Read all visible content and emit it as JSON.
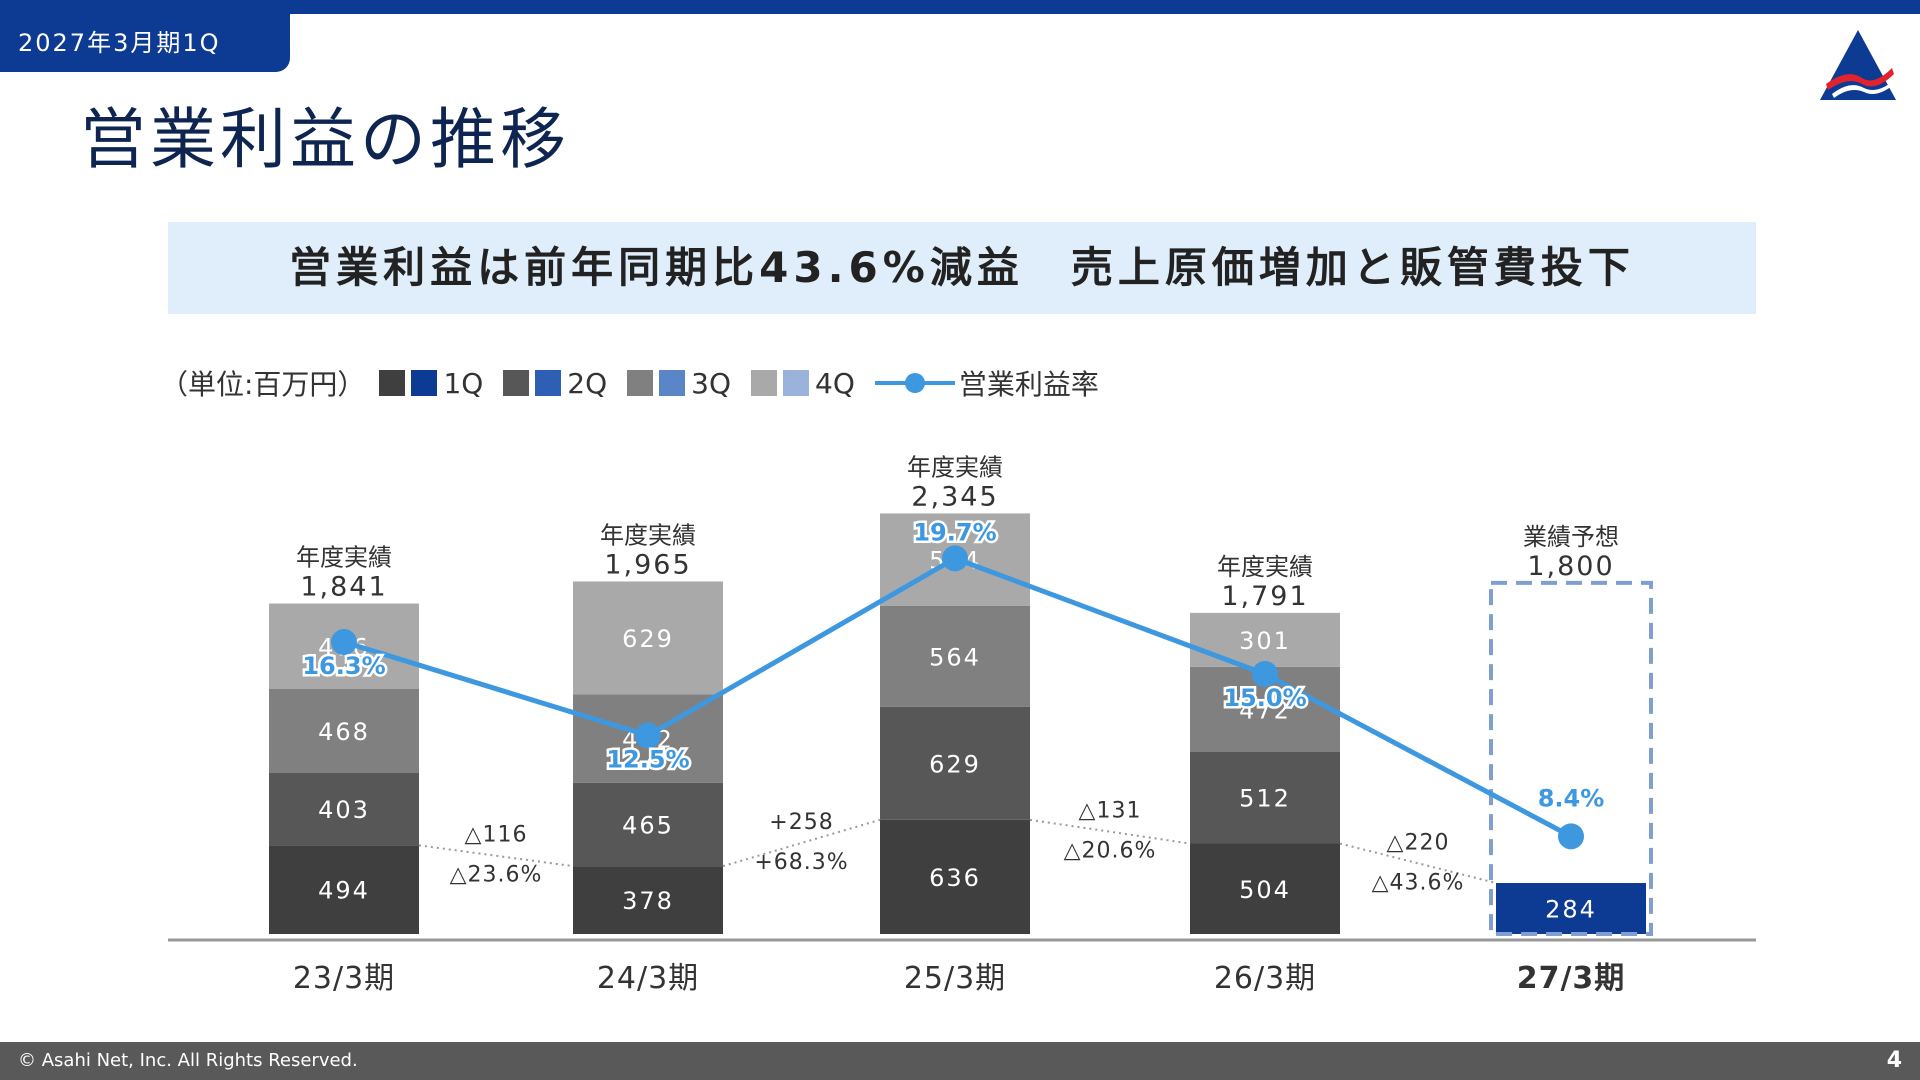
{
  "header": {
    "period_tab": "2027年3月期1Q",
    "title": "営業利益の推移",
    "headline": "営業利益は前年同期比43.6%減益　売上原価増加と販管費投下",
    "logo_icon": "asahi-net-logo-icon"
  },
  "legend": {
    "unit": "（単位:百万円）",
    "items": [
      {
        "label": "1Q",
        "colors": [
          "#3f3f3f",
          "#0d3a93"
        ]
      },
      {
        "label": "2Q",
        "colors": [
          "#575757",
          "#2e5fb4"
        ]
      },
      {
        "label": "3Q",
        "colors": [
          "#808080",
          "#5a86c8"
        ]
      },
      {
        "label": "4Q",
        "colors": [
          "#a9a9a9",
          "#9bb2db"
        ]
      }
    ],
    "line_label": "営業利益率"
  },
  "chart_data": {
    "type": "bar",
    "stacked": true,
    "categories": [
      "23/3期",
      "24/3期",
      "25/3期",
      "26/3期",
      "27/3期"
    ],
    "series": [
      {
        "name": "1Q",
        "values": [
          494,
          378,
          636,
          504,
          284
        ]
      },
      {
        "name": "2Q",
        "values": [
          403,
          465,
          629,
          512,
          null
        ]
      },
      {
        "name": "3Q",
        "values": [
          468,
          492,
          564,
          472,
          null
        ]
      },
      {
        "name": "4Q",
        "values": [
          476,
          629,
          514,
          301,
          null
        ]
      }
    ],
    "totals": [
      {
        "label": "年度実績",
        "value": "1,841"
      },
      {
        "label": "年度実績",
        "value": "1,965"
      },
      {
        "label": "年度実績",
        "value": "2,345"
      },
      {
        "label": "年度実績",
        "value": "1,791"
      },
      {
        "label": "業績予想",
        "value": "1,800"
      }
    ],
    "forecast_total": 1800,
    "line": {
      "name": "営業利益率",
      "values": [
        16.3,
        12.5,
        19.7,
        15.0,
        8.4
      ],
      "labels": [
        "16.3%",
        "12.5%",
        "19.7%",
        "15.0%",
        "8.4%"
      ]
    },
    "q1_changes": [
      {
        "amount": "△116",
        "pct": "△23.6%"
      },
      {
        "amount": "+258",
        "pct": "+68.3%"
      },
      {
        "amount": "△131",
        "pct": "△20.6%"
      },
      {
        "amount": "△220",
        "pct": "△43.6%"
      }
    ],
    "ylim": [
      0,
      2400
    ],
    "colors": {
      "q1": "#3f3f3f",
      "q2": "#575757",
      "q3": "#808080",
      "q4": "#a9a9a9",
      "forecast_q1": "#0d3a93",
      "forecast_border": "#7f9fd0",
      "line": "#3d98e0"
    }
  },
  "footer": {
    "copyright": "© Asahi Net, Inc. All Rights Reserved.",
    "page_number": "4"
  }
}
